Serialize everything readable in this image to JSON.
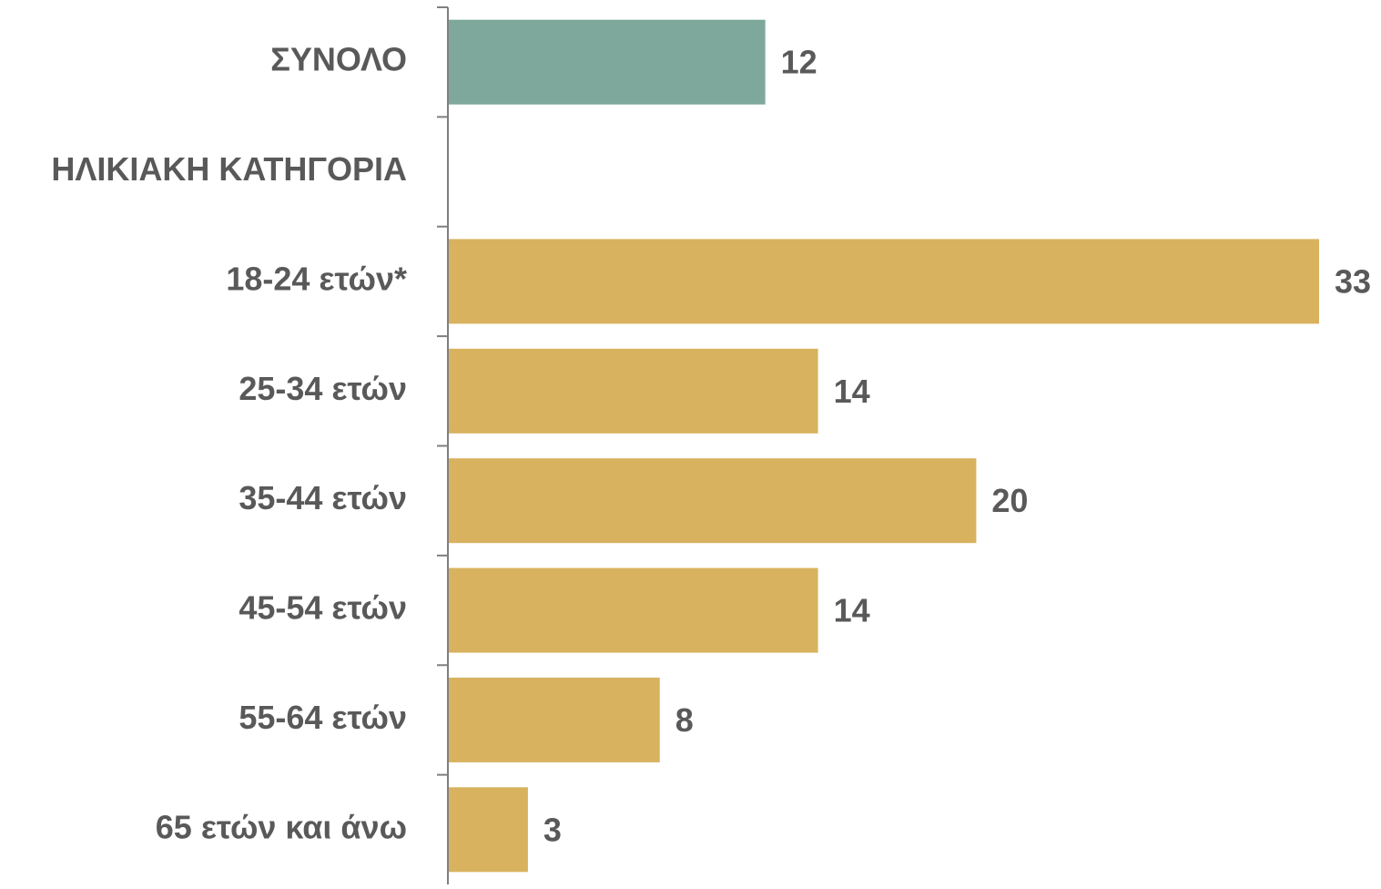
{
  "chart_data": {
    "type": "bar",
    "orientation": "horizontal",
    "categories": [
      "ΣΥΝΟΛΟ",
      "ΗΛΙΚΙΑΚΗ ΚΑΤΗΓΟΡΙΑ",
      "18-24 ετών*",
      "25-34 ετών",
      "35-44 ετών",
      "45-54 ετών",
      "55-64 ετών",
      "65 ετών και άνω"
    ],
    "values": [
      12,
      null,
      33,
      14,
      20,
      14,
      8,
      3
    ],
    "colors": [
      "#7ea89b",
      null,
      "#d8b25e",
      "#d8b25e",
      "#d8b25e",
      "#d8b25e",
      "#d8b25e",
      "#d8b25e"
    ],
    "data_labels": true
  }
}
